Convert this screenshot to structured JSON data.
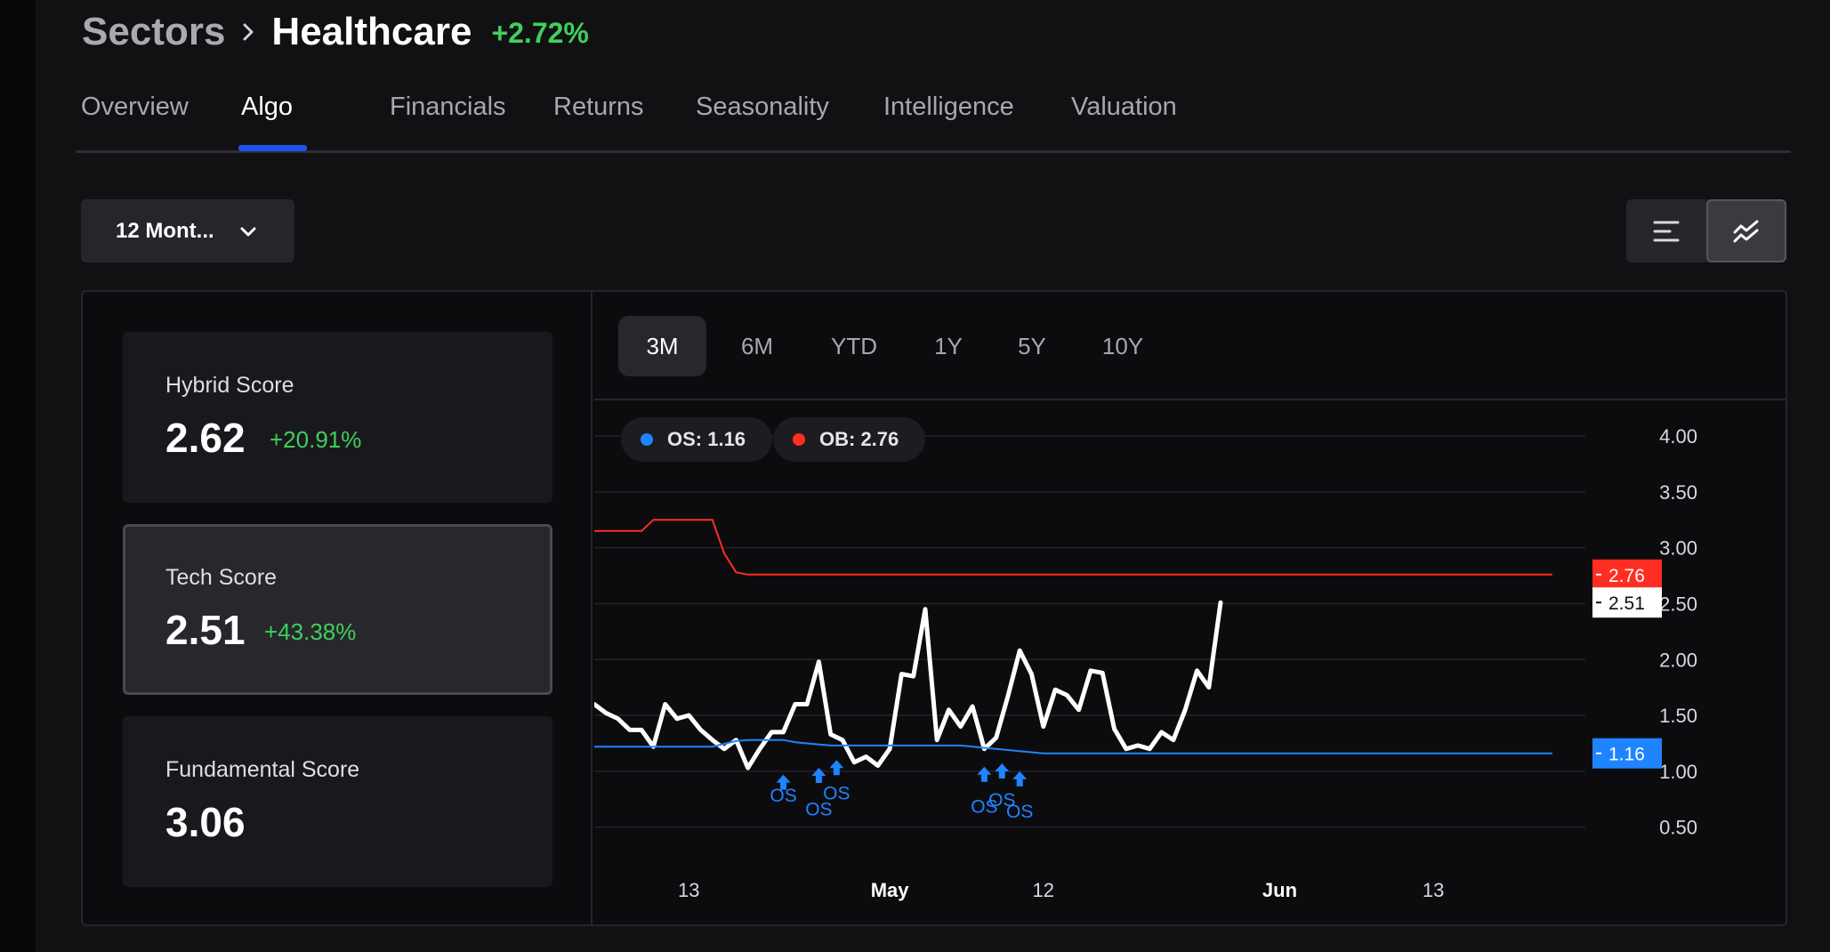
{
  "breadcrumb": {
    "root": "Sectors",
    "current": "Healthcare",
    "change": "+2.72%"
  },
  "tabs": [
    {
      "label": "Overview"
    },
    {
      "label": "Algo",
      "active": true
    },
    {
      "label": "Financials"
    },
    {
      "label": "Returns"
    },
    {
      "label": "Seasonality"
    },
    {
      "label": "Intelligence"
    },
    {
      "label": "Valuation"
    }
  ],
  "period_select": {
    "value": "12 Mont...",
    "icon": "chevron-down-icon"
  },
  "view_toggle": {
    "options": [
      {
        "icon": "list-view-icon",
        "active": false
      },
      {
        "icon": "chart-view-icon",
        "active": true
      }
    ]
  },
  "scores": [
    {
      "label": "Hybrid Score",
      "value": "2.62",
      "change": "+20.91%",
      "active": false
    },
    {
      "label": "Tech Score",
      "value": "2.51",
      "change": "+43.38%",
      "active": true
    },
    {
      "label": "Fundamental Score",
      "value": "3.06",
      "change": "",
      "active": false
    }
  ],
  "range_tabs": [
    {
      "label": "3M",
      "active": true
    },
    {
      "label": "6M"
    },
    {
      "label": "YTD"
    },
    {
      "label": "1Y"
    },
    {
      "label": "5Y"
    },
    {
      "label": "10Y"
    }
  ],
  "legend": {
    "os": {
      "label": "OS: 1.16",
      "color": "#1f84ff"
    },
    "ob": {
      "label": "OB: 2.76",
      "color": "#ff2d22"
    }
  },
  "colors": {
    "positive": "#3fcf5b",
    "accent": "#1c52ee",
    "score_line": "#ffffff",
    "os_line": "#1f84ff",
    "ob_line": "#ff2d22"
  },
  "chart_data": {
    "type": "line",
    "title": "",
    "xlabel": "",
    "ylabel": "",
    "ylim": [
      0.25,
      4.2
    ],
    "y_ticks": [
      4.0,
      3.5,
      3.0,
      2.5,
      2.0,
      1.5,
      1.0,
      0.5
    ],
    "y_tick_labels": [
      "4.00",
      "3.50",
      "3.00",
      "2.50",
      "2.00",
      "1.50",
      "1.00",
      "0.50"
    ],
    "x_ticks": [
      {
        "label": "13",
        "x": 8,
        "bold": false
      },
      {
        "label": "May",
        "x": 25,
        "bold": true
      },
      {
        "label": "12",
        "x": 38,
        "bold": false
      },
      {
        "label": "Jun",
        "x": 58,
        "bold": true
      },
      {
        "label": "13",
        "x": 71,
        "bold": false
      }
    ],
    "x_max": 81,
    "grid": true,
    "legend_position": "top-left",
    "series": [
      {
        "key": "tech_score",
        "color": "#ffffff",
        "values": [
          1.6,
          1.52,
          1.47,
          1.37,
          1.37,
          1.22,
          1.6,
          1.47,
          1.5,
          1.37,
          1.28,
          1.2,
          1.28,
          1.03,
          1.2,
          1.35,
          1.35,
          1.6,
          1.6,
          1.98,
          1.33,
          1.28,
          1.08,
          1.13,
          1.05,
          1.2,
          1.87,
          1.85,
          2.45,
          1.28,
          1.55,
          1.4,
          1.58,
          1.2,
          1.3,
          1.67,
          2.08,
          1.87,
          1.4,
          1.73,
          1.68,
          1.55,
          1.9,
          1.88,
          1.38,
          1.2,
          1.23,
          1.2,
          1.35,
          1.28,
          1.55,
          1.9,
          1.75,
          2.51
        ]
      },
      {
        "key": "os_level",
        "color": "#1f84ff",
        "x": [
          0,
          10,
          12,
          13,
          16,
          17,
          19,
          20,
          25,
          31,
          33,
          37,
          38,
          40,
          72,
          81
        ],
        "values": [
          1.22,
          1.22,
          1.27,
          1.28,
          1.28,
          1.26,
          1.24,
          1.23,
          1.23,
          1.23,
          1.21,
          1.17,
          1.16,
          1.16,
          1.16,
          1.16
        ]
      },
      {
        "key": "ob_level",
        "color": "#ff2d22",
        "x": [
          0,
          4,
          5,
          10,
          11,
          12,
          13,
          81
        ],
        "values": [
          3.15,
          3.15,
          3.25,
          3.25,
          2.95,
          2.78,
          2.76,
          2.76
        ]
      }
    ],
    "markers": [
      {
        "label": "OS",
        "x": 16,
        "y": 0.97,
        "label_y": 0.79
      },
      {
        "label": "OS",
        "x": 19,
        "y": 1.03,
        "label_y": 0.67
      },
      {
        "label": "OS",
        "x": 20.5,
        "y": 1.1,
        "label_y": 0.81
      },
      {
        "label": "OS",
        "x": 33,
        "y": 1.04,
        "label_y": 0.69
      },
      {
        "label": "OS",
        "x": 34.5,
        "y": 1.07,
        "label_y": 0.75
      },
      {
        "label": "OS",
        "x": 36,
        "y": 1.0,
        "label_y": 0.65
      }
    ],
    "value_badges": [
      {
        "value": "2.76",
        "y": 2.76,
        "bg": "#ff2d22",
        "fg": "#ffffff"
      },
      {
        "value": "2.51",
        "y": 2.51,
        "bg": "#ffffff",
        "fg": "#111114"
      },
      {
        "value": "1.16",
        "y": 1.16,
        "bg": "#1f84ff",
        "fg": "#ffffff"
      }
    ]
  }
}
